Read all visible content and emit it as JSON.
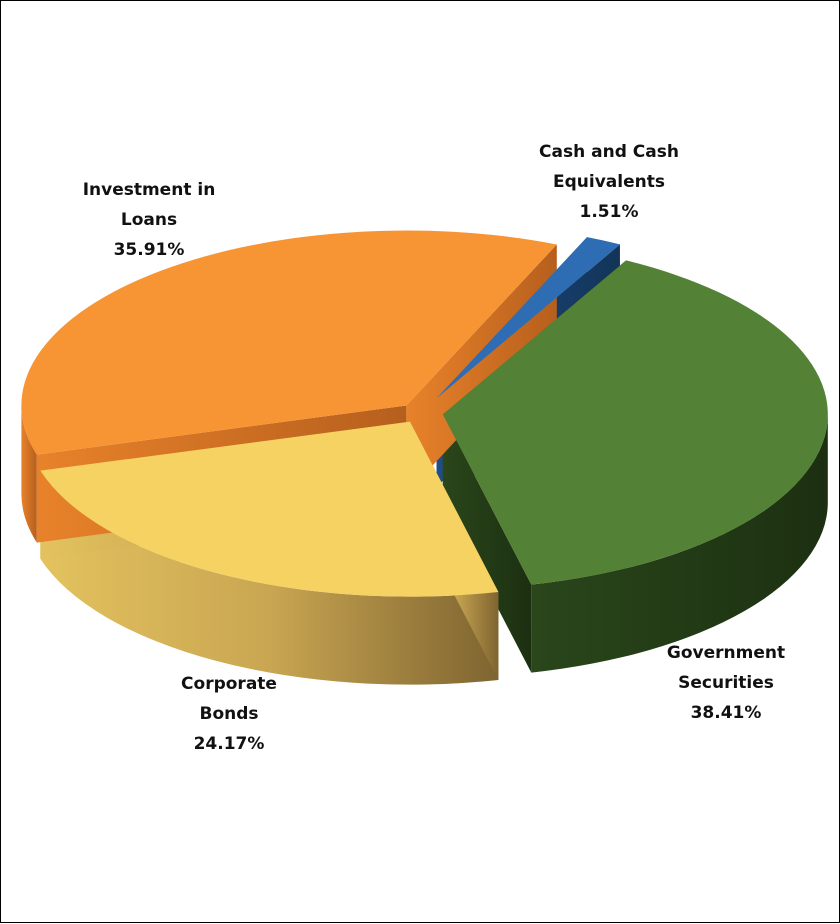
{
  "chart_data": {
    "type": "pie",
    "style": "3d-exploded",
    "title": "",
    "slices": [
      {
        "label_lines": [
          "Cash and Cash",
          "Equivalents"
        ],
        "value": 1.51,
        "value_label": "1.51%",
        "color": "#2E6DB4"
      },
      {
        "label_lines": [
          "Government",
          "Securities"
        ],
        "value": 38.41,
        "value_label": "38.41%",
        "color": "#538135"
      },
      {
        "label_lines": [
          "Corporate",
          "Bonds"
        ],
        "value": 24.17,
        "value_label": "24.17%",
        "color": "#F6D262"
      },
      {
        "label_lines": [
          "Investment in",
          "Loans"
        ],
        "value": 35.91,
        "value_label": "35.91%",
        "color": "#F79433"
      }
    ]
  }
}
